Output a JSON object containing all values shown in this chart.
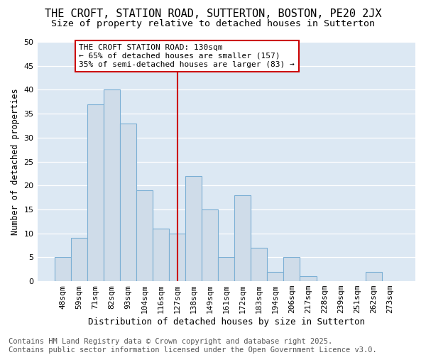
{
  "title1": "THE CROFT, STATION ROAD, SUTTERTON, BOSTON, PE20 2JX",
  "title2": "Size of property relative to detached houses in Sutterton",
  "xlabel": "Distribution of detached houses by size in Sutterton",
  "ylabel": "Number of detached properties",
  "categories": [
    "48sqm",
    "59sqm",
    "71sqm",
    "82sqm",
    "93sqm",
    "104sqm",
    "116sqm",
    "127sqm",
    "138sqm",
    "149sqm",
    "161sqm",
    "172sqm",
    "183sqm",
    "194sqm",
    "206sqm",
    "217sqm",
    "228sqm",
    "239sqm",
    "251sqm",
    "262sqm",
    "273sqm"
  ],
  "values": [
    5,
    9,
    37,
    40,
    33,
    19,
    11,
    10,
    22,
    15,
    5,
    18,
    7,
    2,
    5,
    1,
    0,
    0,
    0,
    2,
    0
  ],
  "bar_color": "#cfdce9",
  "bar_edge_color": "#7bafd4",
  "vline_x_index": 7,
  "vline_color": "#cc0000",
  "annotation_text": "THE CROFT STATION ROAD: 130sqm\n← 65% of detached houses are smaller (157)\n35% of semi-detached houses are larger (83) →",
  "annotation_box_facecolor": "#ffffff",
  "annotation_box_edgecolor": "#cc0000",
  "fig_bg_color": "#ffffff",
  "plot_bg_color": "#dce8f3",
  "grid_color": "#ffffff",
  "ylim": [
    0,
    50
  ],
  "yticks": [
    0,
    5,
    10,
    15,
    20,
    25,
    30,
    35,
    40,
    45,
    50
  ],
  "title1_fontsize": 11,
  "title2_fontsize": 9.5,
  "footer": "Contains HM Land Registry data © Crown copyright and database right 2025.\nContains public sector information licensed under the Open Government Licence v3.0.",
  "footer_fontsize": 7.5,
  "xlabel_fontsize": 9,
  "ylabel_fontsize": 8.5,
  "tick_fontsize": 8,
  "annot_fontsize": 8
}
